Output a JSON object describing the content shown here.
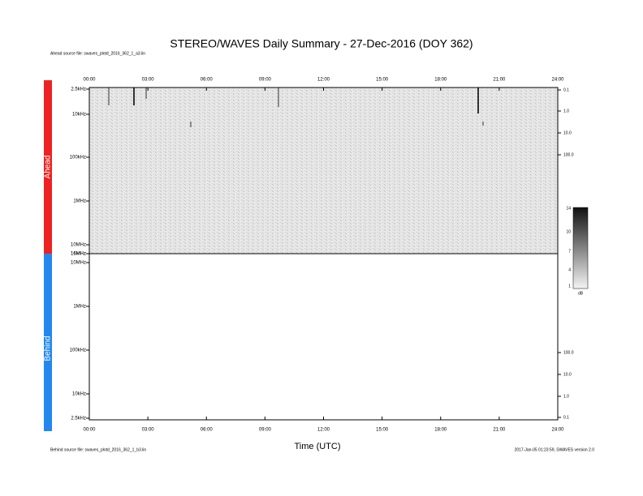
{
  "header": {
    "title": "STEREO/WAVES Daily Summary - 27-Dec-2016 (DOY 362)",
    "ahead_source": "Ahead source file: swaves_plotd_2016_362_1_a3.lin"
  },
  "footer": {
    "behind_source": "Behind source file: swaves_plotd_2016_362_1_b3.lin",
    "version": "2017-Jan-05 01:23:59, SWAVES version 2.0"
  },
  "x_axis": {
    "label": "Time (UTC)",
    "ticks": [
      "00:00",
      "03:00",
      "06:00",
      "09:00",
      "12:00",
      "15:00",
      "18:00",
      "21:00",
      "24:00"
    ]
  },
  "ahead": {
    "label": "Ahead",
    "left_ticks": [
      "2.5kHz",
      "10kHz",
      "100kHz",
      "1MHz",
      "10MHz",
      "16MHz"
    ],
    "right_ticks": [
      "0.1",
      "1.0",
      "10.0",
      "100.0"
    ]
  },
  "behind": {
    "label": "Behind",
    "left_ticks": [
      "16MHz",
      "10MHz",
      "1MHz",
      "100kHz",
      "10kHz",
      "2.5kHz"
    ],
    "right_ticks": [
      "100.0",
      "10.0",
      "1.0",
      "0.1"
    ]
  },
  "colorbar": {
    "ticks": [
      "14",
      "10",
      "7",
      "4",
      "1"
    ],
    "unit": "dB"
  }
}
